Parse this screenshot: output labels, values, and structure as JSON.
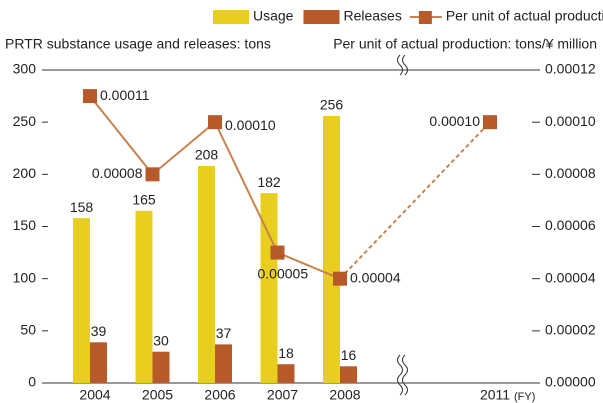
{
  "chart_data": {
    "type": "bar",
    "y_axis_label": "PRTR substance usage and releases: tons",
    "y2_axis_label": "Per unit of actual production: tons/¥ million",
    "x_unit": "(FY)",
    "categories": [
      "2004",
      "2005",
      "2006",
      "2007",
      "2008",
      "2011"
    ],
    "x_axis_break": true,
    "series": [
      {
        "name": "Usage",
        "type": "bar",
        "color": "#e8cf1e",
        "values": [
          158,
          165,
          208,
          182,
          256,
          null
        ]
      },
      {
        "name": "Releases",
        "type": "bar",
        "color": "#b65a2a",
        "values": [
          39,
          30,
          37,
          18,
          16,
          null
        ]
      },
      {
        "name": "Per unit of actual production",
        "type": "line",
        "axis": "y2",
        "color": "#c9824e",
        "marker_color": "#b65a2a",
        "values": [
          0.00011,
          8e-05,
          0.0001,
          5e-05,
          4e-05,
          0.0001
        ],
        "value_labels": [
          "0.00011",
          "0.00008",
          "0.00010",
          "0.00005",
          "0.00004",
          "0.00010"
        ]
      }
    ],
    "ylim": [
      0,
      300
    ],
    "yticks": [
      0,
      50,
      100,
      150,
      200,
      250,
      300
    ],
    "y2lim": [
      0,
      0.00012
    ],
    "y2ticks": [
      {
        "value": 0,
        "label": "0.00000"
      },
      {
        "value": 2e-05,
        "label": "0.00002"
      },
      {
        "value": 4e-05,
        "label": "0.00004"
      },
      {
        "value": 6e-05,
        "label": "0.00006"
      },
      {
        "value": 8e-05,
        "label": "0.00008"
      },
      {
        "value": 0.0001,
        "label": "0.00010"
      },
      {
        "value": 0.00012,
        "label": "0.00012"
      }
    ]
  }
}
